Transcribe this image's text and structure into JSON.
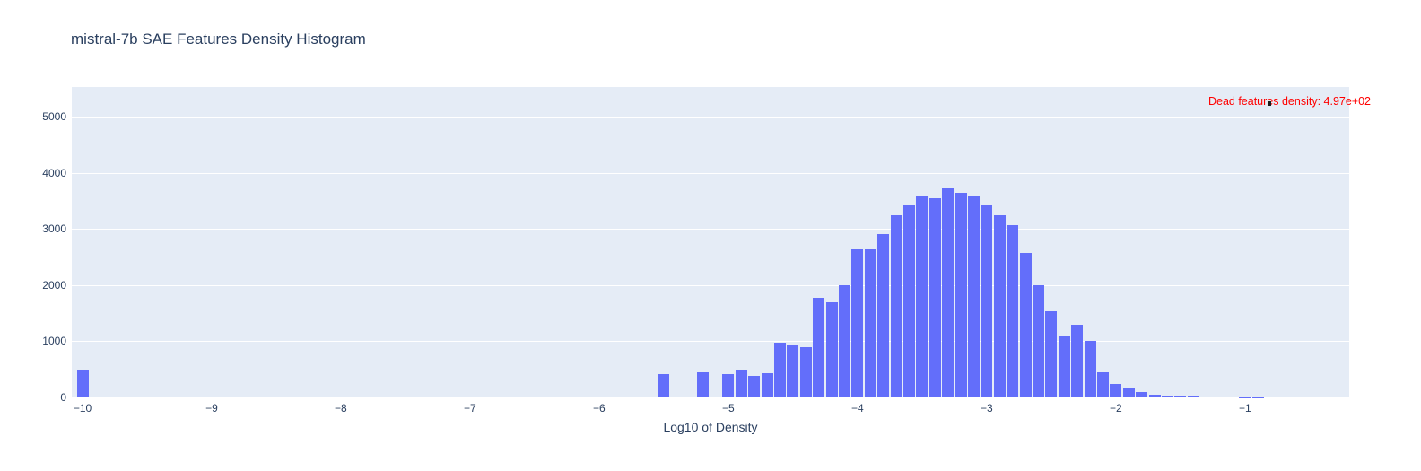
{
  "title": "mistral-7b SAE Features Density Histogram",
  "annotation": {
    "text": "Dead features density: 4.97e+02",
    "color": "#ff0000"
  },
  "colors": {
    "bar": "#636efa",
    "plot_background": "#e5ecf6",
    "gridline": "#ffffff",
    "text": "#2a3f5f",
    "paper_background": "#ffffff"
  },
  "chart_data": {
    "type": "bar",
    "subtype": "histogram",
    "title": "mistral-7b SAE Features Density Histogram",
    "xlabel": "Log10 of Density",
    "ylabel": "",
    "bin_width": 0.1,
    "x": [
      -10.0,
      -5.5,
      -5.2,
      -5.0,
      -4.9,
      -4.8,
      -4.7,
      -4.6,
      -4.5,
      -4.4,
      -4.3,
      -4.2,
      -4.1,
      -4.0,
      -3.9,
      -3.8,
      -3.7,
      -3.6,
      -3.5,
      -3.4,
      -3.3,
      -3.2,
      -3.1,
      -3.0,
      -2.9,
      -2.8,
      -2.7,
      -2.6,
      -2.5,
      -2.4,
      -2.3,
      -2.2,
      -2.1,
      -2.0,
      -1.9,
      -1.8,
      -1.7,
      -1.6,
      -1.5,
      -1.4,
      -1.3,
      -1.2,
      -1.1,
      -1.0,
      -0.9
    ],
    "values": [
      497,
      410,
      445,
      420,
      490,
      390,
      440,
      975,
      930,
      890,
      1770,
      1700,
      2000,
      2660,
      2645,
      2910,
      3250,
      3435,
      3600,
      3550,
      3740,
      3650,
      3600,
      3420,
      3250,
      3070,
      2580,
      2000,
      1530,
      1080,
      1300,
      1010,
      450,
      245,
      155,
      90,
      55,
      40,
      35,
      35,
      20,
      12,
      10,
      8,
      6
    ],
    "xlim": [
      -10.083,
      -0.194
    ],
    "ylim": [
      0,
      5530
    ],
    "xticks": {
      "values": [
        -10,
        -9,
        -8,
        -7,
        -6,
        -5,
        -4,
        -3,
        -2,
        -1
      ],
      "labels": [
        "−10",
        "−9",
        "−8",
        "−7",
        "−6",
        "−5",
        "−4",
        "−3",
        "−2",
        "−1"
      ]
    },
    "yticks": {
      "values": [
        0,
        1000,
        2000,
        3000,
        4000,
        5000
      ],
      "labels": [
        "0",
        "1000",
        "2000",
        "3000",
        "4000",
        "5000"
      ]
    },
    "grid": "horizontal white gridlines on light plot background",
    "legend": "none",
    "annotations": [
      {
        "text": "Dead features density: 4.97e+02",
        "color": "#ff0000",
        "refers_to_x": -10,
        "refers_to_value": 497
      }
    ]
  }
}
